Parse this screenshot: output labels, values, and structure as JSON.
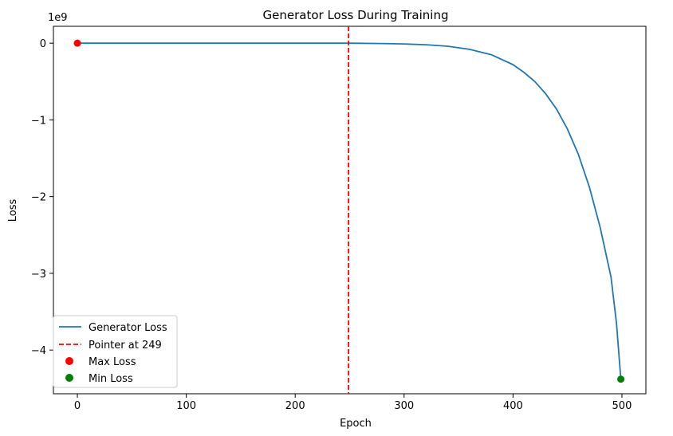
{
  "chart_data": {
    "type": "line",
    "title": "Generator Loss During Training",
    "xlabel": "Epoch",
    "ylabel": "Loss",
    "y_offset_label": "1e9",
    "xlim": [
      -22,
      522
    ],
    "ylim": [
      -4.57,
      0.22
    ],
    "x_ticks": [
      0,
      100,
      200,
      300,
      400,
      500
    ],
    "y_ticks": [
      0,
      -1,
      -2,
      -3,
      -4
    ],
    "y_tick_labels": [
      "0",
      "−1",
      "−2",
      "−3",
      "−4"
    ],
    "grid": false,
    "legend_placement": "lower-left",
    "series": [
      {
        "name": "Generator Loss",
        "color": "#1f77b4",
        "x": [
          0,
          50,
          100,
          150,
          200,
          249,
          280,
          300,
          320,
          340,
          360,
          380,
          400,
          410,
          420,
          430,
          440,
          450,
          460,
          470,
          480,
          490,
          495,
          499
        ],
        "y": [
          0,
          0,
          0,
          0,
          0,
          0,
          -0.005,
          -0.01,
          -0.02,
          -0.04,
          -0.08,
          -0.15,
          -0.28,
          -0.38,
          -0.5,
          -0.66,
          -0.86,
          -1.12,
          -1.45,
          -1.87,
          -2.4,
          -3.05,
          -3.65,
          -4.38
        ]
      }
    ],
    "vline": {
      "name": "Pointer at 249",
      "x": 249,
      "color": "#ff0000"
    },
    "points": [
      {
        "name": "Max Loss",
        "x": 0,
        "y": 0,
        "color": "#ff0000"
      },
      {
        "name": "Min Loss",
        "x": 499,
        "y": -4.38,
        "color": "#008000"
      }
    ]
  }
}
